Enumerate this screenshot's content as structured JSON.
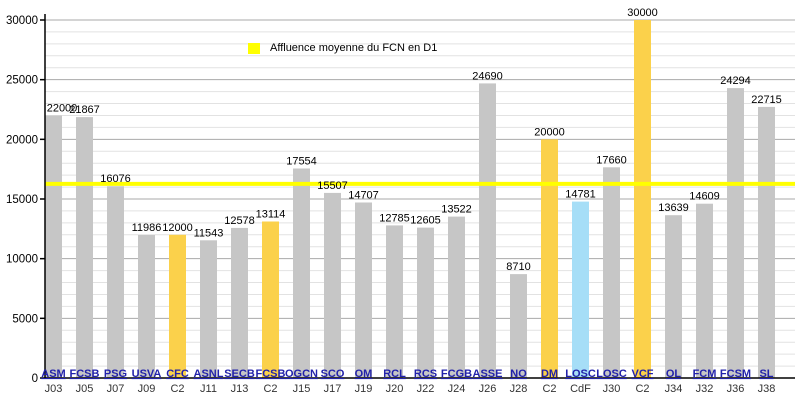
{
  "chart_data": {
    "type": "bar",
    "title": "",
    "legend_label": "Affluence moyenne du FCN en D1",
    "ylim": [
      0,
      30000
    ],
    "y_major_tick_step": 5000,
    "y_minor_tick_step": 1000,
    "y_tick_labels": [
      "0",
      "5000",
      "10000",
      "15000",
      "20000",
      "25000",
      "30000"
    ],
    "average_line": {
      "value": 16266,
      "color": "#FFFF00"
    },
    "colors": {
      "d1_bar": "#C6C6C6",
      "c2_bar": "#FBD14B",
      "cdf_bar": "#A6DEF7",
      "legend_swatch": "#FFFF00",
      "club_label": "#2222AA",
      "match_label": "#333333",
      "value_label": "#000000",
      "grid_major": "#A9A9A9",
      "grid_minor": "#E2E2E2",
      "axis": "#000000"
    },
    "matches": [
      {
        "opponent": "ASM",
        "match": "J03",
        "attendance": 22000,
        "type": "d1"
      },
      {
        "opponent": "FCSB",
        "match": "J05",
        "attendance": 21867,
        "type": "d1"
      },
      {
        "opponent": "PSG",
        "match": "J07",
        "attendance": 16076,
        "type": "d1"
      },
      {
        "opponent": "USVA",
        "match": "J09",
        "attendance": 11986,
        "type": "d1"
      },
      {
        "opponent": "CFC",
        "match": "C2",
        "attendance": 12000,
        "type": "c2"
      },
      {
        "opponent": "ASNL",
        "match": "J11",
        "attendance": 11543,
        "type": "d1"
      },
      {
        "opponent": "SECB",
        "match": "J13",
        "attendance": 12578,
        "type": "d1"
      },
      {
        "opponent": "FCSB",
        "match": "C2",
        "attendance": 13114,
        "type": "c2"
      },
      {
        "opponent": "OGCN",
        "match": "J15",
        "attendance": 17554,
        "type": "d1"
      },
      {
        "opponent": "SCO",
        "match": "J17",
        "attendance": 15507,
        "type": "d1"
      },
      {
        "opponent": "OM",
        "match": "J19",
        "attendance": 14707,
        "type": "d1"
      },
      {
        "opponent": "RCL",
        "match": "J20",
        "attendance": 12785,
        "type": "d1"
      },
      {
        "opponent": "RCS",
        "match": "J22",
        "attendance": 12605,
        "type": "d1"
      },
      {
        "opponent": "FCGB",
        "match": "J24",
        "attendance": 13522,
        "type": "d1"
      },
      {
        "opponent": "ASSE",
        "match": "J26",
        "attendance": 24690,
        "type": "d1"
      },
      {
        "opponent": "NO",
        "match": "J28",
        "attendance": 8710,
        "type": "d1"
      },
      {
        "opponent": "DM",
        "match": "C2",
        "attendance": 20000,
        "type": "c2"
      },
      {
        "opponent": "LOSC",
        "match": "CdF",
        "attendance": 14781,
        "type": "cdf"
      },
      {
        "opponent": "LOSC",
        "match": "J30",
        "attendance": 17660,
        "type": "d1"
      },
      {
        "opponent": "VCF",
        "match": "C2",
        "attendance": 30000,
        "type": "c2"
      },
      {
        "opponent": "OL",
        "match": "J34",
        "attendance": 13639,
        "type": "d1"
      },
      {
        "opponent": "FCM",
        "match": "J32",
        "attendance": 14609,
        "type": "d1"
      },
      {
        "opponent": "FCSM",
        "match": "J36",
        "attendance": 24294,
        "type": "d1"
      },
      {
        "opponent": "SL",
        "match": "J38",
        "attendance": 22715,
        "type": "d1"
      }
    ]
  }
}
